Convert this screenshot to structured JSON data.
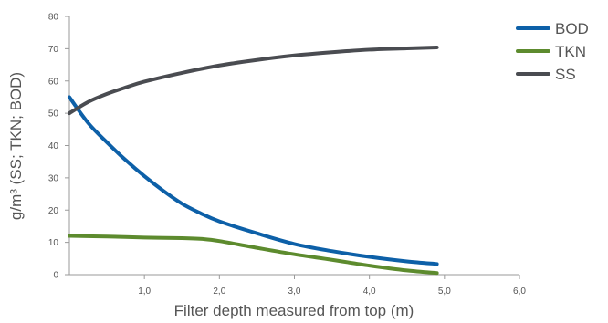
{
  "chart_data": {
    "type": "line",
    "title": "",
    "xlabel": "Filter depth measured from top (m)",
    "ylabel": "g/m³ (SS; TKN; BOD)",
    "xlim": [
      0,
      6
    ],
    "ylim": [
      0,
      80
    ],
    "x_ticks": [
      {
        "value": 1,
        "label": "1,0"
      },
      {
        "value": 2,
        "label": "2,0"
      },
      {
        "value": 3,
        "label": "3,0"
      },
      {
        "value": 4,
        "label": "4,0"
      },
      {
        "value": 5,
        "label": "5,0"
      },
      {
        "value": 6,
        "label": "6,0"
      }
    ],
    "y_ticks": [
      {
        "value": 0,
        "label": "0"
      },
      {
        "value": 10,
        "label": "10"
      },
      {
        "value": 20,
        "label": "20"
      },
      {
        "value": 30,
        "label": "30"
      },
      {
        "value": 40,
        "label": "40"
      },
      {
        "value": 50,
        "label": "50"
      },
      {
        "value": 60,
        "label": "60"
      },
      {
        "value": 70,
        "label": "70"
      },
      {
        "value": 80,
        "label": "80"
      }
    ],
    "grid": false,
    "legend": "top-right",
    "series": [
      {
        "name": "BOD",
        "color": "#0d60a8",
        "x": [
          0,
          0.25,
          0.5,
          0.75,
          1.0,
          1.25,
          1.5,
          1.75,
          2.0,
          2.5,
          3.0,
          3.5,
          4.0,
          4.5,
          4.9
        ],
        "y": [
          55,
          47,
          41,
          35.5,
          30.5,
          26,
          22,
          19,
          16.5,
          12.8,
          9.5,
          7.3,
          5.5,
          4.1,
          3.3
        ]
      },
      {
        "name": "TKN",
        "color": "#5d8b2e",
        "x": [
          0,
          0.5,
          1.0,
          1.5,
          1.8,
          2.0,
          2.5,
          3.0,
          3.5,
          4.0,
          4.5,
          4.9
        ],
        "y": [
          12,
          11.8,
          11.5,
          11.3,
          11.0,
          10.4,
          8.3,
          6.3,
          4.6,
          2.8,
          1.3,
          0.5
        ]
      },
      {
        "name": "SS",
        "color": "#4a4c51",
        "x": [
          0,
          0.25,
          0.5,
          0.75,
          1.0,
          1.5,
          2.0,
          2.5,
          3.0,
          3.5,
          4.0,
          4.5,
          4.9
        ],
        "y": [
          50,
          53.5,
          56,
          58,
          59.8,
          62.5,
          64.8,
          66.5,
          67.9,
          68.9,
          69.7,
          70.1,
          70.4
        ]
      }
    ]
  }
}
